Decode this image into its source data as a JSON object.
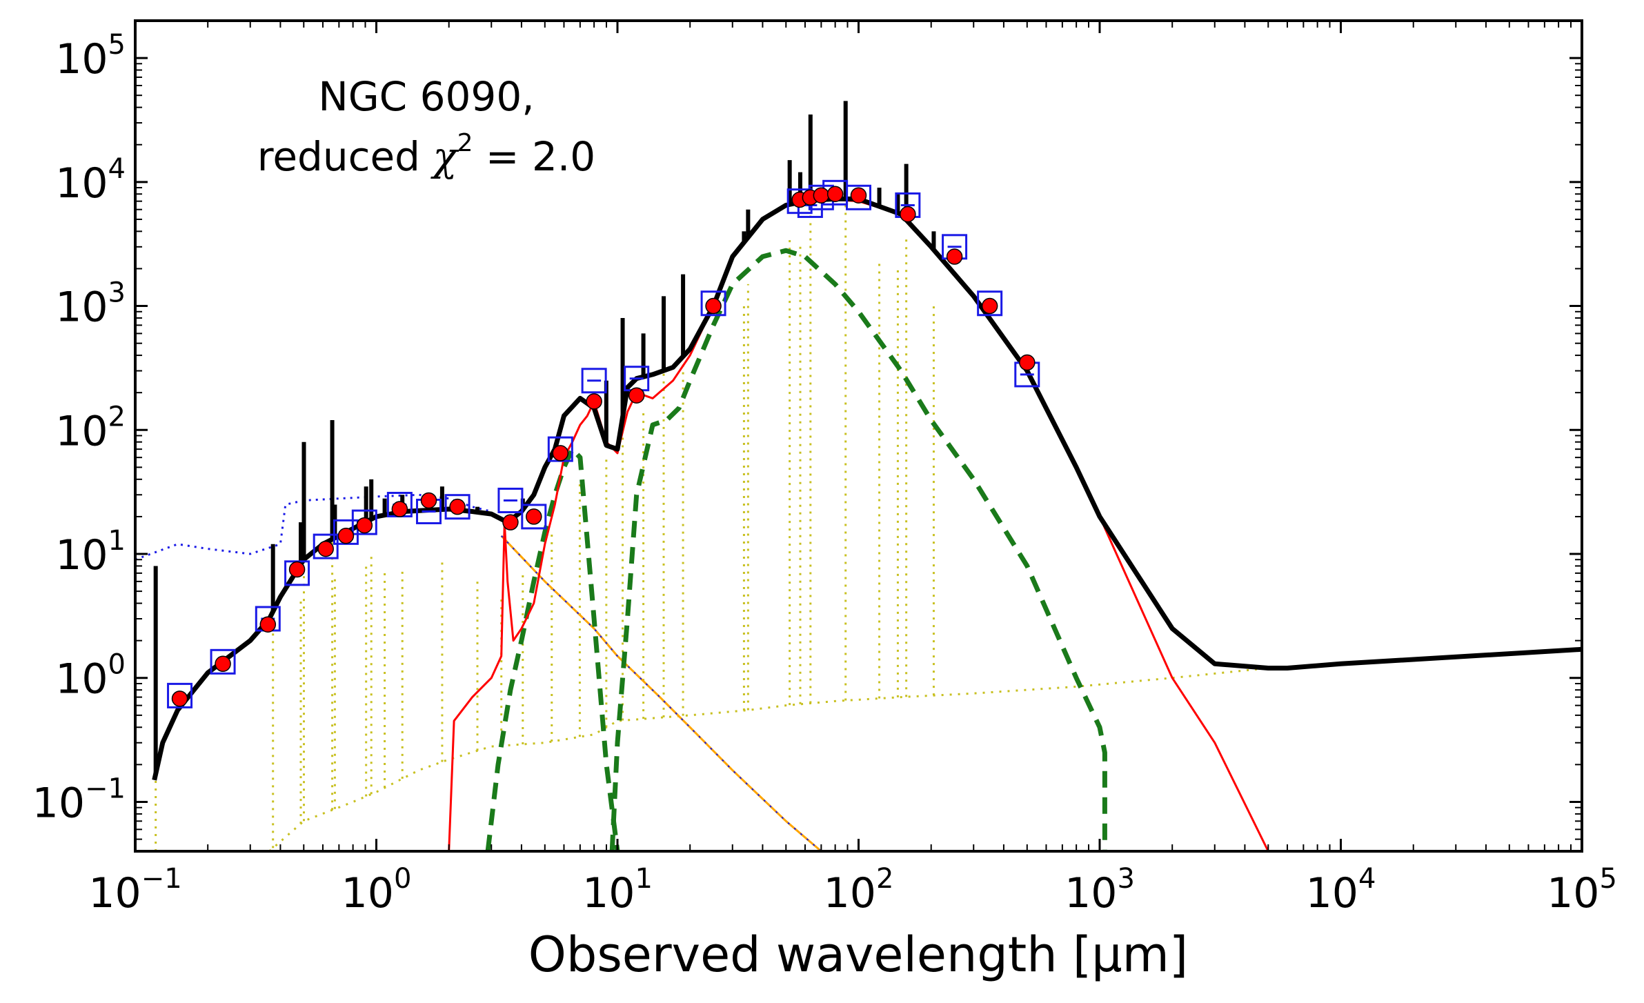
{
  "chart_data": {
    "type": "line",
    "xscale": "log",
    "yscale": "log",
    "xlim": [
      0.1,
      100000
    ],
    "ylim": [
      0.04,
      200000
    ],
    "title": "",
    "xlabel": "Observed wavelength [μm]",
    "ylabel": "",
    "annotation": {
      "line1": "NGC 6090,",
      "line2_prefix": "reduced ",
      "chi": "χ",
      "chi_exp": "2",
      "line2_suffix": " = 2.0"
    },
    "x_ticks": [
      {
        "value": 0.1,
        "base": "10",
        "exp": "−1"
      },
      {
        "value": 1,
        "base": "10",
        "exp": "0"
      },
      {
        "value": 10,
        "base": "10",
        "exp": "1"
      },
      {
        "value": 100,
        "base": "10",
        "exp": "2"
      },
      {
        "value": 1000,
        "base": "10",
        "exp": "3"
      },
      {
        "value": 10000,
        "base": "10",
        "exp": "4"
      },
      {
        "value": 100000,
        "base": "10",
        "exp": "5"
      }
    ],
    "y_ticks": [
      {
        "value": 0.1,
        "base": "10",
        "exp": "−1"
      },
      {
        "value": 1,
        "base": "10",
        "exp": "0"
      },
      {
        "value": 10,
        "base": "10",
        "exp": "1"
      },
      {
        "value": 100,
        "base": "10",
        "exp": "2"
      },
      {
        "value": 1000,
        "base": "10",
        "exp": "3"
      },
      {
        "value": 10000,
        "base": "10",
        "exp": "4"
      },
      {
        "value": 100000,
        "base": "10",
        "exp": "5"
      }
    ],
    "colors": {
      "total": "#000000",
      "dust": "#ff0000",
      "dust_components": "#1a7a1a",
      "attenuated_stellar": "#ffa500",
      "unattenuated_stellar": "#1a1ae6",
      "nebular": "#c8c020",
      "model_points": "#ff0000",
      "observed_points": "#1a1ae6"
    },
    "series": [
      {
        "name": "total_model",
        "style": "solid-thick",
        "x": [
          0.12,
          0.13,
          0.15,
          0.2,
          0.3,
          0.36,
          0.4,
          0.5,
          0.6,
          0.7,
          0.8,
          1.0,
          1.3,
          2.0,
          2.5,
          3.0,
          3.5,
          4.0,
          4.5,
          5.0,
          5.5,
          6.0,
          7.0,
          8.0,
          9.0,
          10.0,
          11.0,
          12.0,
          14.0,
          17.0,
          20.0,
          25.0,
          30.0,
          40.0,
          50.0,
          60.0,
          70.0,
          80.0,
          100.0,
          150.0,
          200.0,
          300.0,
          500.0,
          800.0,
          1000.0,
          2000.0,
          3000.0,
          5000.0,
          6000.0,
          10000.0,
          100000.0
        ],
        "y": [
          0.15,
          0.3,
          0.55,
          1.1,
          2.0,
          3.0,
          4.5,
          9.0,
          12.0,
          14.0,
          16.0,
          20.0,
          22.0,
          23.0,
          22.0,
          21.0,
          18.0,
          22.0,
          30.0,
          50.0,
          70.0,
          130.0,
          180.0,
          150.0,
          75.0,
          70.0,
          220.0,
          260.0,
          280.0,
          320.0,
          450.0,
          1000.0,
          2500.0,
          5000.0,
          6500.0,
          7000.0,
          7200.0,
          7300.0,
          7300.0,
          5500.0,
          3000.0,
          1200.0,
          300.0,
          50.0,
          20.0,
          2.5,
          1.3,
          1.2,
          1.2,
          1.3,
          1.7
        ]
      },
      {
        "name": "dust_emission",
        "style": "solid-thin",
        "x": [
          2.0,
          2.1,
          2.5,
          3.0,
          3.3,
          3.4,
          3.5,
          3.7,
          4.0,
          4.5,
          5.0,
          5.5,
          6.0,
          6.5,
          7.0,
          7.5,
          8.0,
          9.0,
          10.0,
          11.0,
          12.0,
          14.0,
          17.0,
          20.0,
          25.0,
          30.0,
          40.0,
          50.0,
          60.0,
          80.0,
          100.0,
          150.0,
          200.0,
          300.0,
          500.0,
          1000.0,
          2000.0,
          3000.0,
          5000.0
        ],
        "y": [
          0.04,
          0.45,
          0.7,
          1.0,
          1.5,
          18.0,
          6.0,
          2.0,
          2.5,
          4.0,
          12.0,
          25.0,
          60.0,
          80.0,
          110.0,
          130.0,
          170.0,
          80.0,
          65.0,
          140.0,
          200.0,
          180.0,
          250.0,
          400.0,
          1000.0,
          2500.0,
          5000.0,
          6500.0,
          7000.0,
          7200.0,
          7000.0,
          5500.0,
          3000.0,
          1200.0,
          300.0,
          20.0,
          1.0,
          0.3,
          0.04
        ]
      },
      {
        "name": "dust_component_hot",
        "style": "dashed",
        "x": [
          2.9,
          3.2,
          3.6,
          4.0,
          4.5,
          5.0,
          5.5,
          6.0,
          6.5,
          7.0,
          8.0,
          9.0,
          10.0
        ],
        "y": [
          0.04,
          0.2,
          0.8,
          2.0,
          6.0,
          15.0,
          30.0,
          50.0,
          70.0,
          60.0,
          3.0,
          0.2,
          0.04
        ]
      },
      {
        "name": "dust_component_cool",
        "style": "dashed",
        "x": [
          9.5,
          10.0,
          11.0,
          12.0,
          14.0,
          16.0,
          18.0,
          20.0,
          25.0,
          30.0,
          40.0,
          50.0,
          60.0,
          80.0,
          100.0,
          150.0,
          200.0,
          300.0,
          500.0,
          800.0,
          1000.0,
          1050.0,
          1050.0
        ],
        "y": [
          0.04,
          0.3,
          3.0,
          30.0,
          110.0,
          120.0,
          150.0,
          250.0,
          700.0,
          1500.0,
          2500.0,
          2800.0,
          2500.0,
          1500.0,
          900.0,
          300.0,
          120.0,
          40.0,
          8.0,
          1.0,
          0.4,
          0.25,
          0.04
        ]
      },
      {
        "name": "attenuated_stellar",
        "style": "solid-thin",
        "x": [
          3.3,
          5.0,
          8.0,
          10.0,
          15.0,
          20.0,
          30.0,
          50.0,
          70.0
        ],
        "y": [
          14.0,
          6.0,
          2.5,
          1.5,
          0.7,
          0.4,
          0.18,
          0.07,
          0.04
        ]
      },
      {
        "name": "unattenuated_stellar",
        "style": "dotted",
        "x": [
          0.1,
          0.15,
          0.2,
          0.3,
          0.4,
          0.42,
          0.5,
          0.7,
          1.0,
          1.5,
          2.0,
          2.5,
          3.0
        ],
        "y": [
          9.0,
          12.0,
          11.0,
          10.0,
          12.0,
          25.0,
          27.0,
          28.0,
          29.0,
          30.0,
          28.0,
          24.0,
          22.0
        ]
      },
      {
        "name": "nebular_continuum",
        "style": "dotted",
        "x": [
          0.36,
          0.5,
          0.8,
          1.0,
          1.5,
          2.0,
          3.0,
          5.0,
          8.0,
          10.0,
          20.0,
          35.0,
          50.0,
          80.0,
          150.0,
          300.0,
          800.0,
          2000.0,
          5000.0
        ],
        "y": [
          0.04,
          0.07,
          0.1,
          0.12,
          0.18,
          0.22,
          0.28,
          0.3,
          0.35,
          0.45,
          0.5,
          0.55,
          0.6,
          0.65,
          0.7,
          0.75,
          0.85,
          1.0,
          1.2
        ]
      }
    ],
    "observed_points": [
      {
        "x": 0.153,
        "y": 0.72
      },
      {
        "x": 0.231,
        "y": 1.35
      },
      {
        "x": 0.355,
        "y": 3.0
      },
      {
        "x": 0.469,
        "y": 7.0
      },
      {
        "x": 0.617,
        "y": 11.5
      },
      {
        "x": 0.748,
        "y": 15.0
      },
      {
        "x": 0.893,
        "y": 18.0
      },
      {
        "x": 1.25,
        "y": 25.0
      },
      {
        "x": 1.65,
        "y": 22.0
      },
      {
        "x": 2.17,
        "y": 24.0
      },
      {
        "x": 3.6,
        "y": 27.0
      },
      {
        "x": 4.5,
        "y": 20.0
      },
      {
        "x": 5.8,
        "y": 70.0
      },
      {
        "x": 8.0,
        "y": 250.0
      },
      {
        "x": 12.0,
        "y": 260.0
      },
      {
        "x": 25.0,
        "y": 1050.0
      },
      {
        "x": 57.0,
        "y": 7000.0
      },
      {
        "x": 63.0,
        "y": 6500.0
      },
      {
        "x": 70.0,
        "y": 7500.0
      },
      {
        "x": 80.0,
        "y": 8200.0
      },
      {
        "x": 100.0,
        "y": 7500.0
      },
      {
        "x": 160.0,
        "y": 6500.0
      },
      {
        "x": 250.0,
        "y": 3000.0
      },
      {
        "x": 350.0,
        "y": 1050.0
      },
      {
        "x": 500.0,
        "y": 280.0
      }
    ],
    "model_points": [
      {
        "x": 0.153,
        "y": 0.68
      },
      {
        "x": 0.231,
        "y": 1.3
      },
      {
        "x": 0.355,
        "y": 2.7
      },
      {
        "x": 0.469,
        "y": 7.5
      },
      {
        "x": 0.617,
        "y": 11.0
      },
      {
        "x": 0.748,
        "y": 14.0
      },
      {
        "x": 0.893,
        "y": 17.0
      },
      {
        "x": 1.25,
        "y": 23.0
      },
      {
        "x": 1.65,
        "y": 27.0
      },
      {
        "x": 2.17,
        "y": 24.0
      },
      {
        "x": 3.6,
        "y": 18.0
      },
      {
        "x": 4.5,
        "y": 20.0
      },
      {
        "x": 5.8,
        "y": 65.0
      },
      {
        "x": 8.0,
        "y": 170.0
      },
      {
        "x": 12.0,
        "y": 190.0
      },
      {
        "x": 25.0,
        "y": 1000.0
      },
      {
        "x": 57.0,
        "y": 7200.0
      },
      {
        "x": 63.0,
        "y": 7500.0
      },
      {
        "x": 70.0,
        "y": 7800.0
      },
      {
        "x": 80.0,
        "y": 8000.0
      },
      {
        "x": 100.0,
        "y": 7800.0
      },
      {
        "x": 160.0,
        "y": 5500.0
      },
      {
        "x": 250.0,
        "y": 2500.0
      },
      {
        "x": 350.0,
        "y": 1000.0
      },
      {
        "x": 500.0,
        "y": 350.0
      }
    ],
    "emission_line_spikes": [
      {
        "x": 0.1216,
        "y": 8.0
      },
      {
        "x": 0.3727,
        "y": 12.0
      },
      {
        "x": 0.4861,
        "y": 18.0
      },
      {
        "x": 0.5007,
        "y": 80.0
      },
      {
        "x": 0.6563,
        "y": 120.0
      },
      {
        "x": 0.6731,
        "y": 25.0
      },
      {
        "x": 0.9069,
        "y": 35.0
      },
      {
        "x": 0.9532,
        "y": 40.0
      },
      {
        "x": 1.083,
        "y": 28.0
      },
      {
        "x": 1.282,
        "y": 30.0
      },
      {
        "x": 1.875,
        "y": 35.0
      },
      {
        "x": 2.625,
        "y": 24.0
      },
      {
        "x": 3.3,
        "y": 18.0
      },
      {
        "x": 4.05,
        "y": 28.0
      },
      {
        "x": 5.34,
        "y": 60.0
      },
      {
        "x": 6.98,
        "y": 150.0
      },
      {
        "x": 8.99,
        "y": 250.0
      },
      {
        "x": 10.51,
        "y": 800.0
      },
      {
        "x": 12.81,
        "y": 600.0
      },
      {
        "x": 15.55,
        "y": 1200.0
      },
      {
        "x": 18.71,
        "y": 1800.0
      },
      {
        "x": 33.48,
        "y": 4000.0
      },
      {
        "x": 34.82,
        "y": 6000.0
      },
      {
        "x": 51.8,
        "y": 15000.0
      },
      {
        "x": 57.3,
        "y": 12000.0
      },
      {
        "x": 63.18,
        "y": 35000.0
      },
      {
        "x": 88.36,
        "y": 45000.0
      },
      {
        "x": 121.9,
        "y": 9000.0
      },
      {
        "x": 145.5,
        "y": 8000.0
      },
      {
        "x": 157.7,
        "y": 14000.0
      },
      {
        "x": 205.0,
        "y": 4000.0
      }
    ]
  }
}
